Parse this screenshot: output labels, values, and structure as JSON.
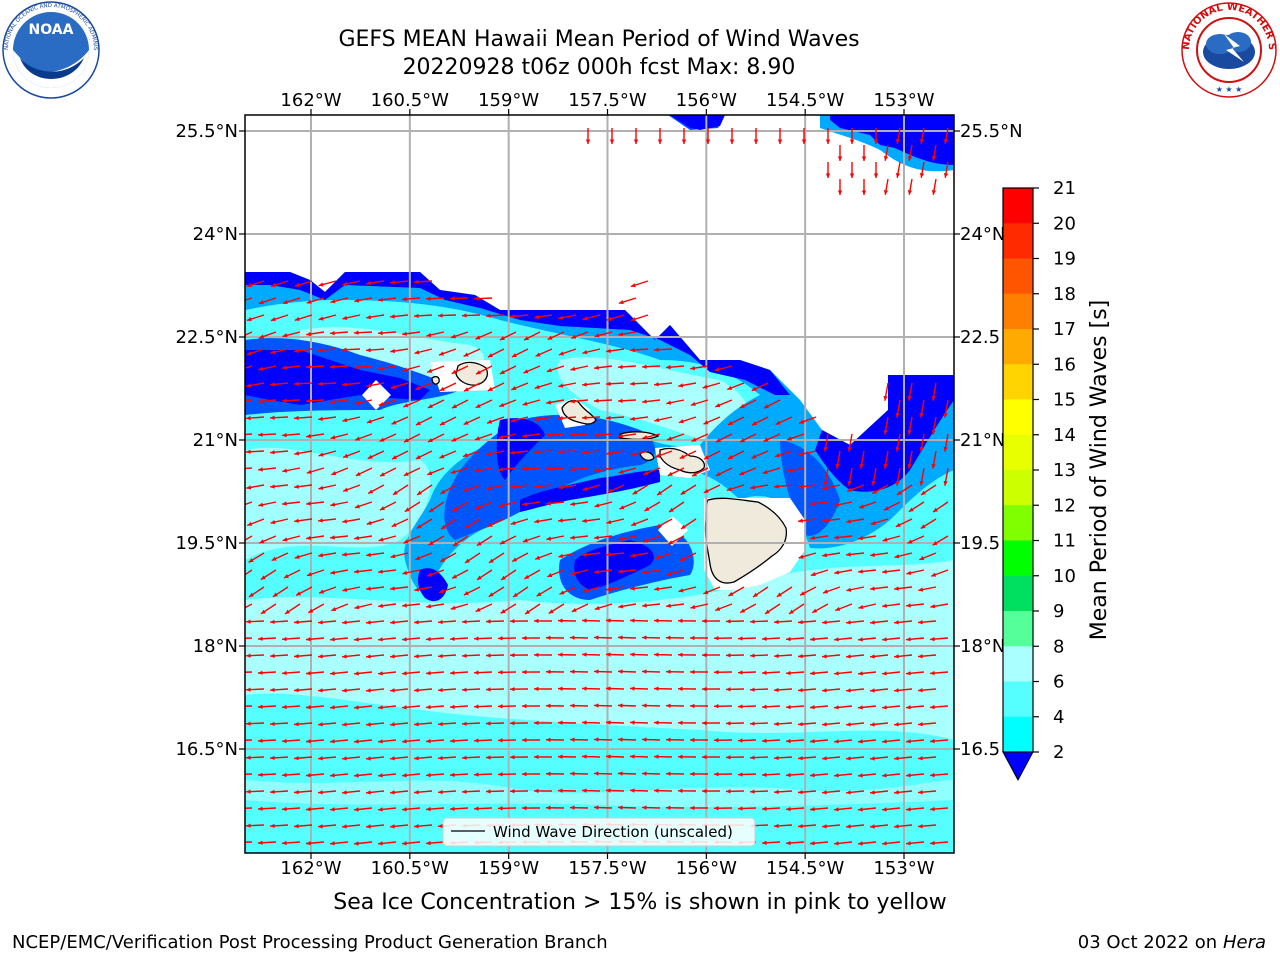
{
  "title": {
    "line1": "GEFS MEAN Hawaii Mean Period of Wind Waves",
    "line2": "20220928 t06z 000h fcst   Max: 8.90"
  },
  "map": {
    "lon_ticks": [
      "162°W",
      "160.5°W",
      "159°W",
      "157.5°W",
      "156°W",
      "154.5°W",
      "153°W"
    ],
    "lat_ticks_left": [
      "25.5°N",
      "24°N",
      "22.5°N",
      "21°N",
      "19.5°N",
      "18°N",
      "16.5°N"
    ],
    "lat_ticks_right": [
      "25.5°N",
      "24°N",
      "22.5",
      "21°N",
      "19.5",
      "18°N",
      "16.5"
    ],
    "lon_values": [
      -162,
      -160.5,
      -159,
      -157.5,
      -156,
      -154.5,
      -153
    ],
    "lat_values": [
      25.5,
      24,
      22.5,
      21,
      19.5,
      18,
      16.5
    ],
    "legend_label": "Wind Wave Direction (unscaled)",
    "arrow_color": "#ff0000",
    "land_color": "#efeadb"
  },
  "colorbar": {
    "label": "Mean Period of Wind Waves [s]",
    "ticks": [
      "21",
      "20",
      "19",
      "18",
      "17",
      "16",
      "15",
      "14",
      "13",
      "12",
      "11",
      "10",
      "9",
      "8",
      "6",
      "4",
      "2"
    ],
    "colors": [
      "#ff0000",
      "#ff2a00",
      "#ff5500",
      "#ff8000",
      "#ffaa00",
      "#ffd400",
      "#ffff00",
      "#e8ff00",
      "#ccff00",
      "#7fff00",
      "#00ff00",
      "#00e060",
      "#55ff99",
      "#aaffff",
      "#55ffff",
      "#00ffff",
      "#00aaff",
      "#0055ff",
      "#0000ff"
    ]
  },
  "bottom_caption": "Sea Ice Concentration > 15% is shown in pink to yellow",
  "footer": {
    "left": "NCEP/EMC/Verification Post Processing Product Generation Branch",
    "right_date": "03 Oct 2022 on ",
    "right_host": "Hera"
  },
  "logos": {
    "noaa_text": "NOAA",
    "noaa_ring": "NATIONAL OCEANIC AND ATMOSPHERIC ADMINISTRATION · U.S. DEPARTMENT OF COMMERCE",
    "nws_ring": "NATIONAL WEATHER SERVICE"
  }
}
